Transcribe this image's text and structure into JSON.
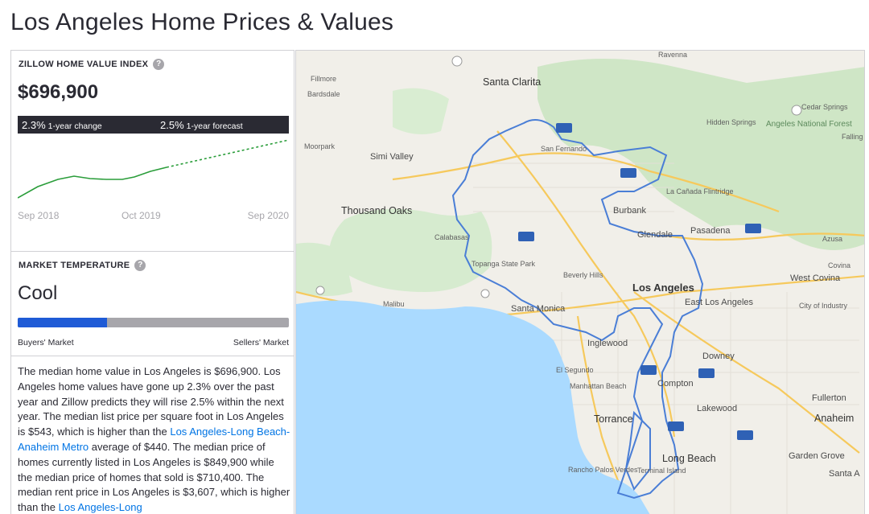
{
  "page": {
    "title": "Los Angeles Home Prices & Values"
  },
  "zhvi": {
    "label": "ZILLOW HOME VALUE INDEX",
    "help": "?",
    "value": "$696,900",
    "change_value": "2.3%",
    "change_label": "1-year change",
    "forecast_value": "2.5%",
    "forecast_label": "1-year forecast",
    "axis": [
      "Sep 2018",
      "Oct 2019",
      "Sep 2020"
    ],
    "line_color": "#2a9d3a"
  },
  "market_temperature": {
    "label": "MARKET TEMPERATURE",
    "help": "?",
    "value": "Cool",
    "level": 0.33,
    "left_label": "Buyers' Market",
    "right_label": "Sellers' Market",
    "fill_color": "#1f5bd6"
  },
  "description": {
    "p1": "The median home value in Los Angeles is $696,900. Los Angeles home values have gone up 2.3% over the past year and Zillow predicts they will rise 2.5% within the next year. The median list price per square foot in Los Angeles is $543, which is higher than the ",
    "link1": "Los Angeles-Long Beach-Anaheim Metro",
    "p2": " average of $440. The median price of homes currently listed in Los Angeles is $849,900 while the median price of homes that sold is $710,400. The median rent price in Los Angeles is $3,607, which is higher than the ",
    "link2": "Los Angeles-Long"
  },
  "map": {
    "water_color": "#aadaff",
    "land_color": "#f1efe9",
    "park_color": "#cde7c5",
    "boundary_color": "#4a7ed6",
    "cities": {
      "ravenna": "Ravenna",
      "fillmore": "Fillmore",
      "santa_clarita": "Santa Clarita",
      "bardsdale": "Bardsdale",
      "cedar_springs": "Cedar Springs",
      "hidden_springs": "Hidden Springs",
      "angeles_nf": "Angeles National Forest",
      "moorpark": "Moorpark",
      "simi_valley": "Simi Valley",
      "san_fernando": "San Fernando",
      "falling": "Falling",
      "la_canada": "La Cañada Flintridge",
      "thousand_oaks": "Thousand Oaks",
      "burbank": "Burbank",
      "calabasas": "Calabasas",
      "glendale": "Glendale",
      "pasadena": "Pasadena",
      "azusa": "Azusa",
      "topanga": "Topanga State Park",
      "covina": "Covina",
      "beverly_hills": "Beverly Hills",
      "los_angeles": "Los Angeles",
      "west_covina": "West Covina",
      "malibu": "Malibu",
      "santa_monica": "Santa Monica",
      "east_la": "East Los Angeles",
      "city_of_industry": "City of Industry",
      "inglewood": "Inglewood",
      "downey": "Downey",
      "el_segundo": "El Segundo",
      "manhattan_beach": "Manhattan Beach",
      "compton": "Compton",
      "fullerton": "Fullerton",
      "lakewood": "Lakewood",
      "torrance": "Torrance",
      "anaheim": "Anaheim",
      "long_beach": "Long Beach",
      "garden_grove": "Garden Grove",
      "rancho_pv": "Rancho Palos Verdes",
      "terminal_island": "Terminal Island",
      "santa_a": "Santa A"
    }
  }
}
